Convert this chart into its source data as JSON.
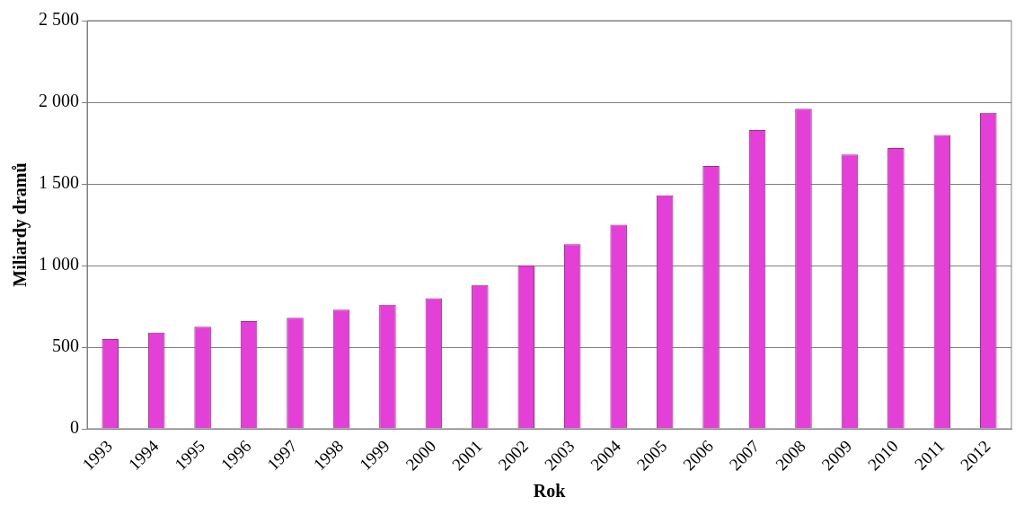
{
  "chart_data": {
    "type": "bar",
    "xlabel": "Rok",
    "ylabel": "Miliardy dramů",
    "categories": [
      "1993",
      "1994",
      "1995",
      "1996",
      "1997",
      "1998",
      "1999",
      "2000",
      "2001",
      "2002",
      "2003",
      "2004",
      "2005",
      "2006",
      "2007",
      "2008",
      "2009",
      "2010",
      "2011",
      "2012"
    ],
    "values": [
      550,
      590,
      625,
      660,
      680,
      730,
      760,
      800,
      880,
      1000,
      1130,
      1250,
      1430,
      1610,
      1830,
      1960,
      1680,
      1720,
      1800,
      1935
    ],
    "color": "#e440d8",
    "ylim": [
      0,
      2500
    ],
    "yticks": [
      0,
      500,
      {
        "value": 1000,
        "label": "1 000"
      },
      {
        "value": 1500,
        "label": "1 500"
      },
      {
        "value": 2000,
        "label": "2 000"
      },
      {
        "value": 2500,
        "label": "2 500"
      }
    ],
    "grid": "y",
    "legend": false
  }
}
